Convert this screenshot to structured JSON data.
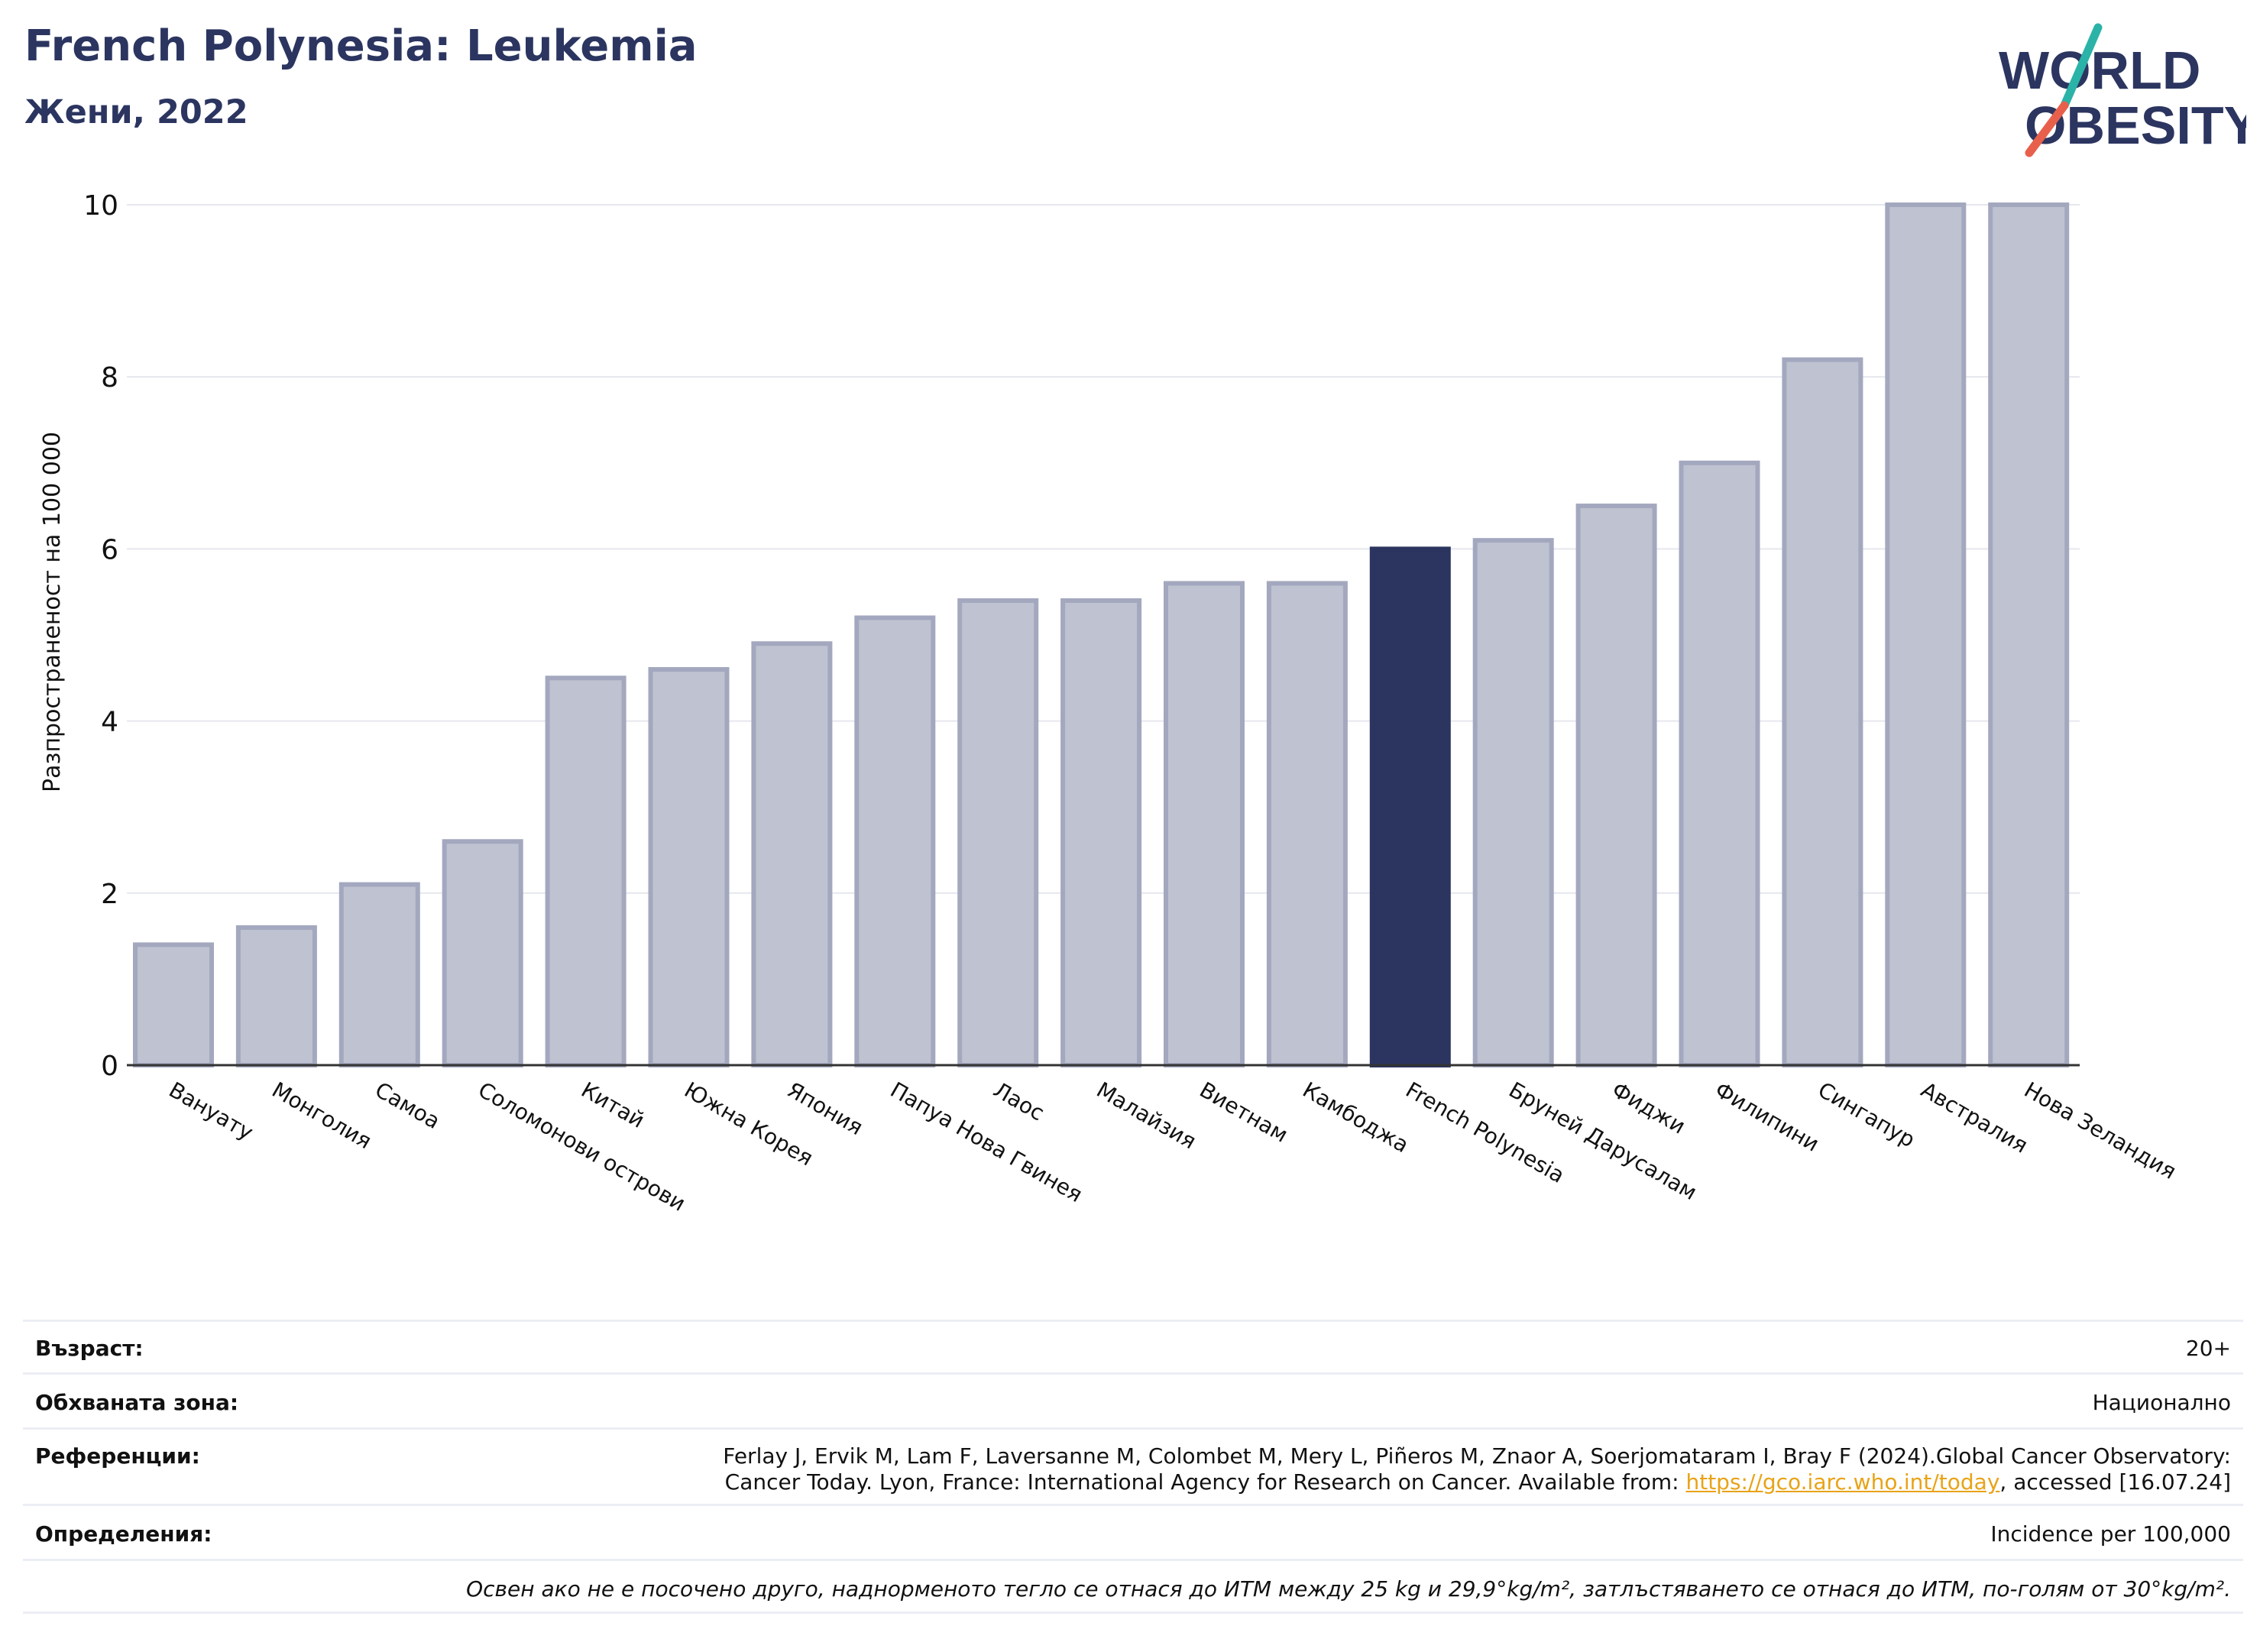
{
  "header": {
    "title": "French Polynesia: Leukemia",
    "subtitle": "Жени, 2022"
  },
  "logo": {
    "line1": "WORLD",
    "line2": "OBESITY",
    "colors": {
      "text": "#2b3560",
      "slash_top": "#2bb3a8",
      "slash_bottom": "#e8604c"
    }
  },
  "chart_data": {
    "type": "bar",
    "title": "French Polynesia: Leukemia",
    "subtitle": "Жени, 2022",
    "ylabel": "Разпространеност  на 100 000",
    "xlabel": "",
    "ylim": [
      0,
      10
    ],
    "yticks": [
      0,
      2,
      4,
      6,
      8,
      10
    ],
    "grid": true,
    "categories": [
      "Вануату",
      "Монголия",
      "Самоа",
      "Соломонови острови",
      "Китай",
      "Южна Корея",
      "Япония",
      "Папуа Нова Гвинея",
      "Лаос",
      "Малайзия",
      "Виетнам",
      "Камбоджа",
      "French Polynesia",
      "Бруней Дарусалам",
      "Фиджи",
      "Филипини",
      "Сингапур",
      "Австралия",
      "Нова Зеландия"
    ],
    "values": [
      1.4,
      1.6,
      2.1,
      2.6,
      4.5,
      4.6,
      4.9,
      5.2,
      5.4,
      5.4,
      5.6,
      5.6,
      6.0,
      6.1,
      6.5,
      7.0,
      8.2,
      10.0,
      10.0
    ],
    "highlight": "French Polynesia",
    "colors": {
      "bar": "#bfc2d0",
      "bar_edge": "#a3a8bf",
      "highlight": "#2b3560",
      "grid": "#e6e7ee",
      "axis": "#333333"
    }
  },
  "info": {
    "age_label": "Възраст:",
    "age_value": "20+",
    "area_label": "Обхваната зона:",
    "area_value": "Национално",
    "ref_label": "Референции:",
    "ref_line1": "Ferlay J, Ervik M, Lam F, Laversanne M, Colombet M, Mery L, Piñeros M, Znaor A, Soerjomataram I, Bray F (2024).Global Cancer Observatory:",
    "ref_line2_pre": "Cancer Today. Lyon, France: International Agency for Research on Cancer. Available from: ",
    "ref_link": "https://gco.iarc.who.int/today",
    "ref_line2_post": ", accessed [16.07.24]",
    "def_label": "Определения:",
    "def_value": "Incidence per 100,000",
    "footnote": "Освен ако не е посочено друго, наднорменото тегло се отнася до ИТМ между 25 kg и 29,9°kg/m², затлъстяването се отнася до ИТМ, по-голям от 30°kg/m²."
  }
}
